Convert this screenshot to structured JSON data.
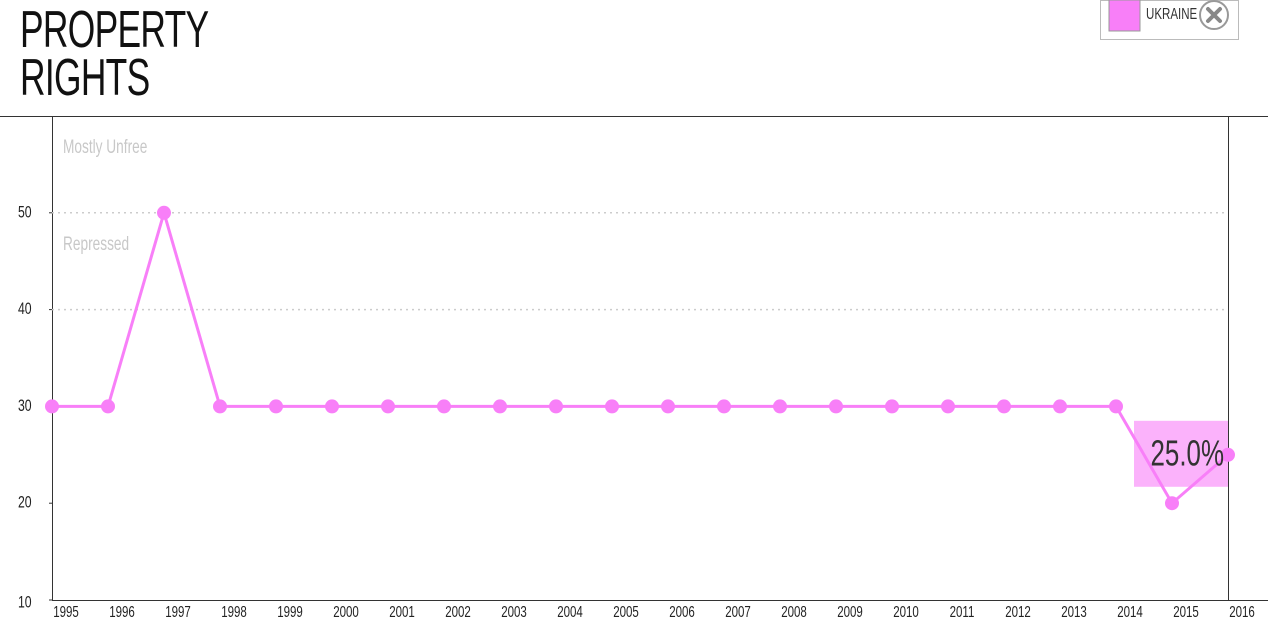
{
  "chart_data": {
    "type": "line",
    "title_lines": [
      "PROPERTY",
      "RIGHTS"
    ],
    "categories": [
      "1995",
      "1996",
      "1997",
      "1998",
      "1999",
      "2000",
      "2001",
      "2002",
      "2003",
      "2004",
      "2005",
      "2006",
      "2007",
      "2008",
      "2009",
      "2010",
      "2011",
      "2012",
      "2013",
      "2014",
      "2015",
      "2016"
    ],
    "series": [
      {
        "name": "UKRAINE",
        "color": "#f87ff8",
        "values": [
          30,
          30,
          50,
          30,
          30,
          30,
          30,
          30,
          30,
          30,
          30,
          30,
          30,
          30,
          30,
          30,
          30,
          30,
          30,
          30,
          20,
          25
        ],
        "value_labels": [
          null,
          null,
          null,
          null,
          null,
          null,
          null,
          null,
          null,
          null,
          null,
          null,
          null,
          null,
          null,
          null,
          null,
          null,
          null,
          null,
          null,
          "25.0%"
        ]
      }
    ],
    "ylim": [
      10,
      60
    ],
    "yticks": [
      10,
      20,
      30,
      40,
      50
    ],
    "zone_lines": [
      40,
      50
    ],
    "zones": [
      {
        "label": "Mostly Unfree",
        "value": 60
      },
      {
        "label": "Repressed",
        "value": 50
      }
    ]
  }
}
